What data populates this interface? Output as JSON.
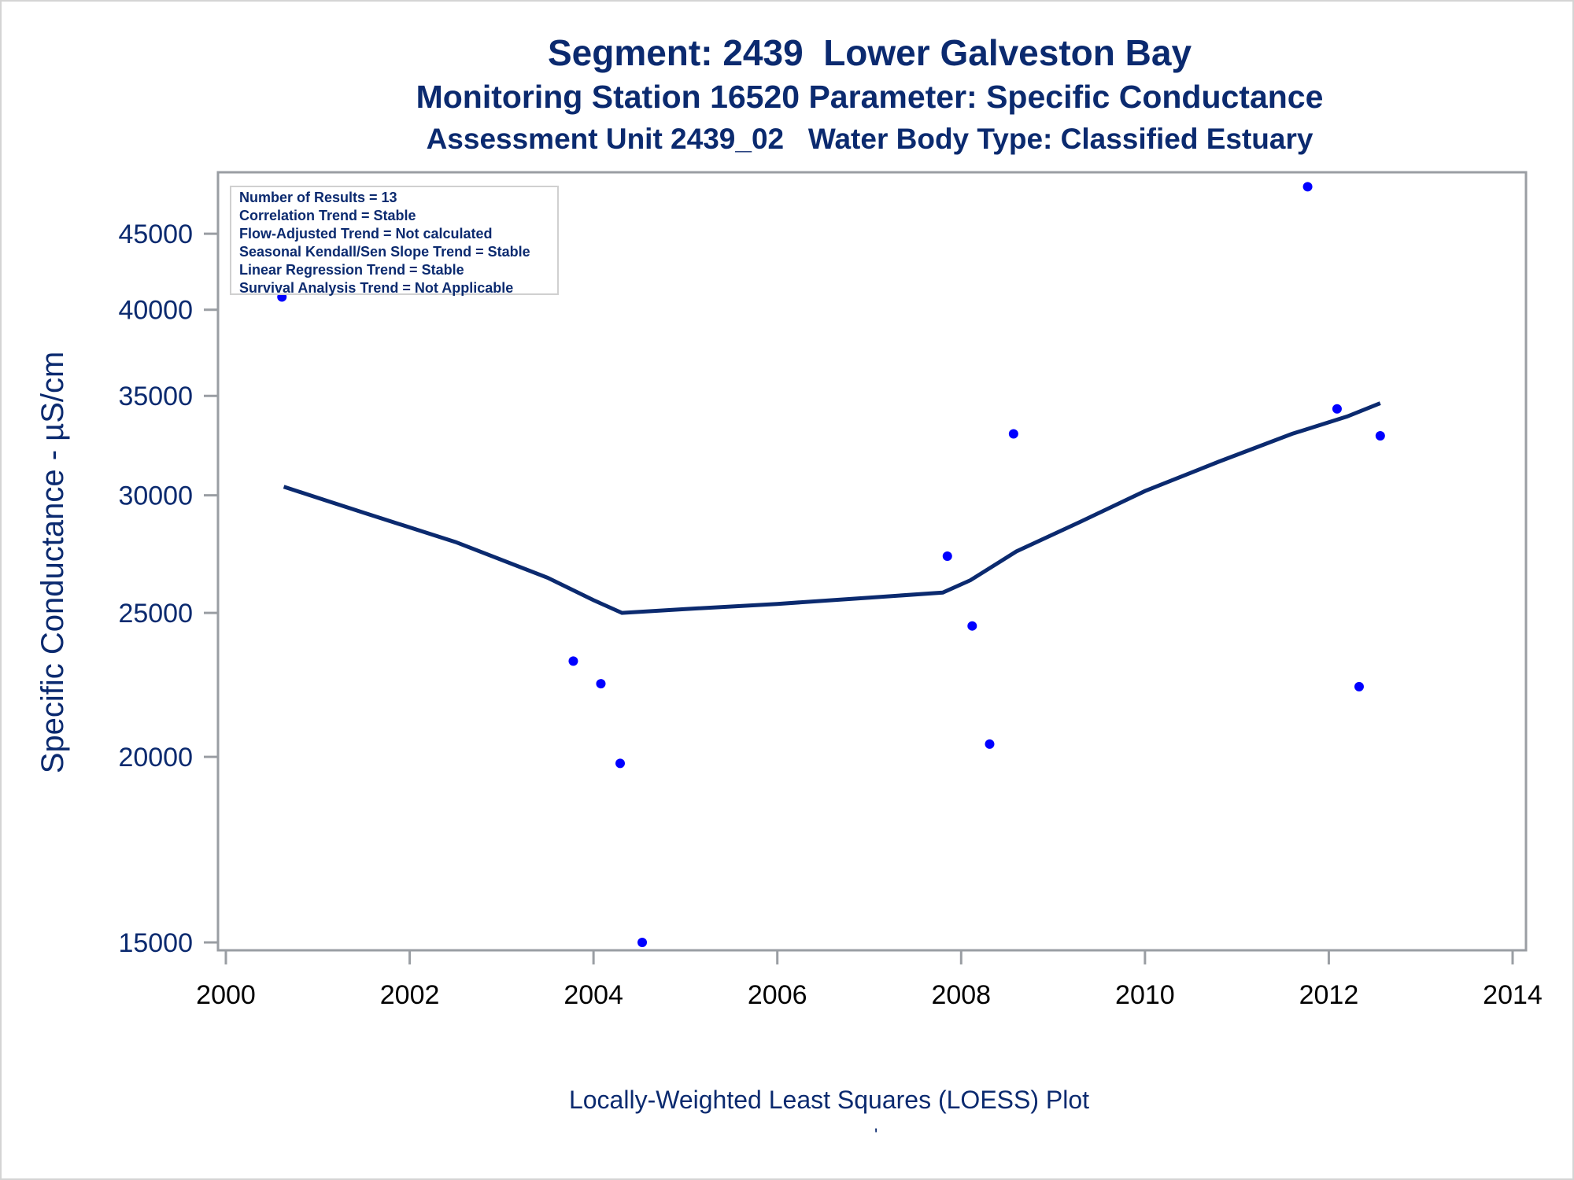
{
  "header": {
    "title": "Segment: 2439  Lower Galveston Bay",
    "subtitle": "Monitoring Station 16520 Parameter: Specific Conductance",
    "subtitle2": "Assessment Unit 2439_02   Water Body Type: Classified Estuary"
  },
  "stats_box": [
    "Number of Results = 13",
    "Correlation Trend = Stable",
    "Flow-Adjusted Trend = Not calculated",
    "Seasonal Kendall/Sen Slope Trend = Stable",
    "Linear Regression Trend = Stable",
    "Survival Analysis Trend = Not Applicable"
  ],
  "footer": {
    "caption": "Locally-Weighted Least Squares (LOESS) Plot",
    "mark": "'"
  },
  "colors": {
    "points": "#0000ff",
    "loess": "#0b2a6f",
    "axis": "#9a9ea3",
    "text": "#0b2a6f"
  },
  "chart_data": {
    "type": "scatter",
    "title": "Segment: 2439  Lower Galveston Bay",
    "xlabel": "",
    "ylabel": "Specific Conductance -  µS/cm",
    "yscale": "log",
    "xlim": [
      2000,
      2014
    ],
    "ylim": [
      15000,
      48500
    ],
    "x_ticks": [
      2000,
      2002,
      2004,
      2006,
      2008,
      2010,
      2012,
      2014
    ],
    "y_ticks": [
      15000,
      20000,
      25000,
      30000,
      35000,
      40000,
      45000
    ],
    "grid": false,
    "series": [
      {
        "name": "Observations",
        "type": "scatter",
        "x": [
          2000.61,
          2003.78,
          2004.08,
          2004.29,
          2004.53,
          2007.85,
          2008.12,
          2008.31,
          2008.57,
          2011.77,
          2012.09,
          2012.33,
          2012.56
        ],
        "y": [
          40800,
          23200,
          22400,
          19800,
          15000,
          27300,
          24500,
          20400,
          33000,
          48400,
          34300,
          22300,
          32900
        ]
      },
      {
        "name": "LOESS",
        "type": "line",
        "x": [
          2000.63,
          2001.5,
          2002.5,
          2003.5,
          2004.0,
          2004.31,
          2005.0,
          2006.0,
          2007.0,
          2007.8,
          2008.1,
          2008.6,
          2009.3,
          2010.0,
          2010.8,
          2011.6,
          2012.2,
          2012.56
        ],
        "y": [
          30400,
          29200,
          27900,
          26400,
          25500,
          25000,
          25150,
          25350,
          25600,
          25800,
          26300,
          27500,
          28800,
          30200,
          31600,
          33000,
          33900,
          34600
        ]
      }
    ]
  }
}
